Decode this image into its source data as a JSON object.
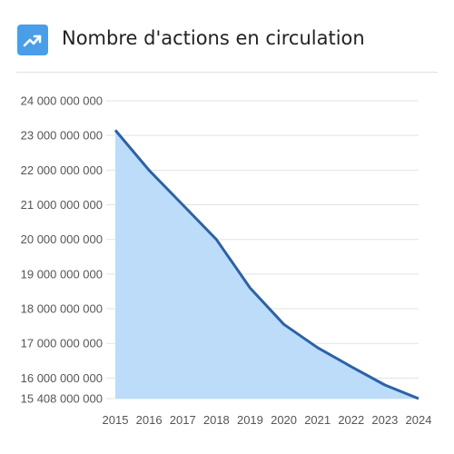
{
  "header": {
    "title": "Nombre d'actions en circulation",
    "icon": "trending-up-icon",
    "icon_color": "#4a9ee8"
  },
  "chart_data": {
    "type": "area",
    "title": "Nombre d'actions en circulation",
    "xlabel": "",
    "ylabel": "",
    "x": [
      "2015",
      "2016",
      "2017",
      "2018",
      "2019",
      "2020",
      "2021",
      "2022",
      "2023",
      "2024"
    ],
    "series": [
      {
        "values": [
          23150000000,
          22000000000,
          21000000000,
          20000000000,
          18600000000,
          17550000000,
          16880000000,
          16330000000,
          15800000000,
          15408000000
        ],
        "line_color": "#2b62a8",
        "fill_color": "#bcdcfa"
      }
    ],
    "ylim": [
      15408000000,
      24000000000
    ],
    "y_ticks": [
      {
        "value": 15408000000,
        "label": "15 408 000 000"
      },
      {
        "value": 16000000000,
        "label": "16 000 000 000"
      },
      {
        "value": 17000000000,
        "label": "17 000 000 000"
      },
      {
        "value": 18000000000,
        "label": "18 000 000 000"
      },
      {
        "value": 19000000000,
        "label": "19 000 000 000"
      },
      {
        "value": 20000000000,
        "label": "20 000 000 000"
      },
      {
        "value": 21000000000,
        "label": "21 000 000 000"
      },
      {
        "value": 22000000000,
        "label": "22 000 000 000"
      },
      {
        "value": 23000000000,
        "label": "23 000 000 000"
      },
      {
        "value": 24000000000,
        "label": "24 000 000 000"
      }
    ],
    "grid": true,
    "legend": "none"
  }
}
